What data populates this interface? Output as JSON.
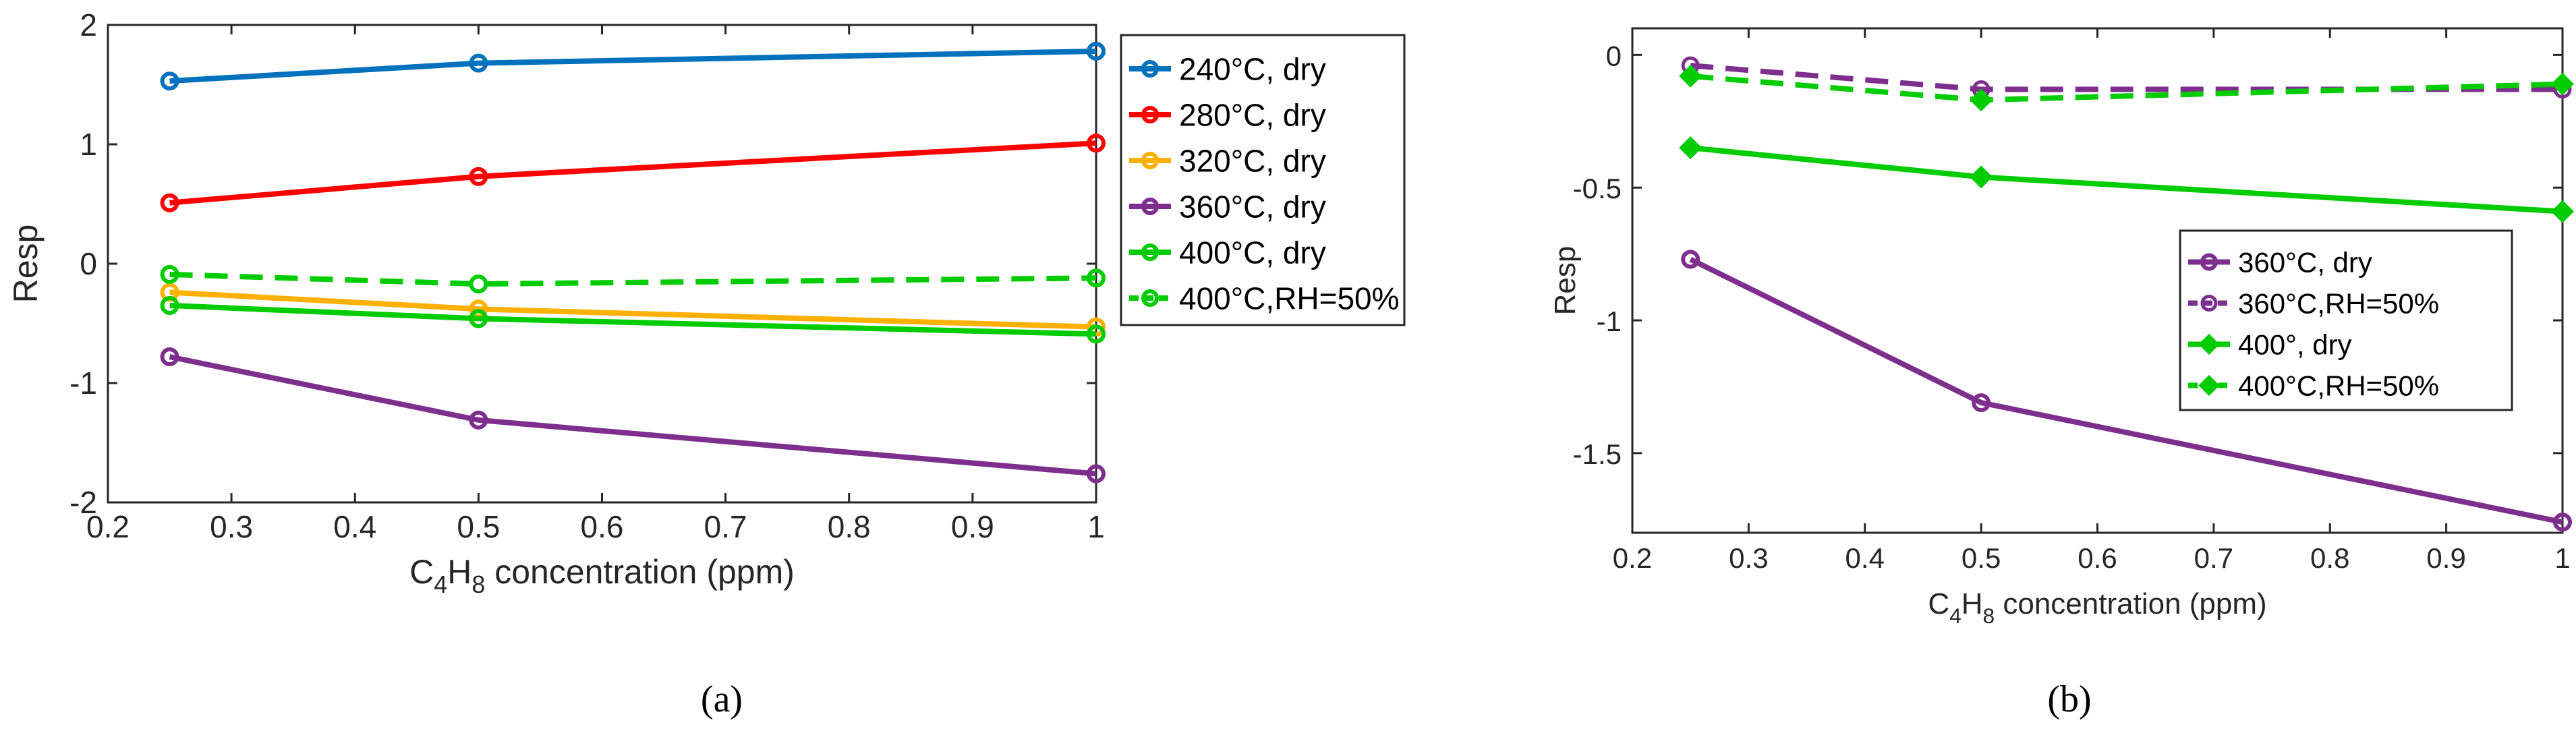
{
  "chart_data": [
    {
      "type": "line",
      "caption": "(a)",
      "xlabel": {
        "prefix": "C",
        "sub1": "4",
        "mid": "H",
        "sub2": "8",
        "suffix": " concentration (ppm)"
      },
      "ylabel": "Resp",
      "xlim": [
        0.2,
        1
      ],
      "ylim": [
        -2,
        2
      ],
      "xticks": [
        0.2,
        0.3,
        0.4,
        0.5,
        0.6,
        0.7,
        0.8,
        0.9,
        1
      ],
      "xtick_labels": [
        "0.2",
        "0.3",
        "0.4",
        "0.5",
        "0.6",
        "0.7",
        "0.8",
        "0.9",
        "1"
      ],
      "yticks": [
        -2,
        -1,
        0,
        1,
        2
      ],
      "ytick_labels": [
        "-2",
        "-1",
        "0",
        "1",
        "2"
      ],
      "x": [
        0.25,
        0.5,
        1
      ],
      "series": [
        {
          "name": "240°C, dry",
          "color": "#0072BD",
          "dash": false,
          "marker": "circle",
          "values": [
            1.53,
            1.68,
            1.78
          ]
        },
        {
          "name": "280°C, dry",
          "color": "#FF0000",
          "dash": false,
          "marker": "circle",
          "values": [
            0.51,
            0.73,
            1.01
          ]
        },
        {
          "name": "320°C, dry",
          "color": "#FFB000",
          "dash": false,
          "marker": "circle",
          "values": [
            -0.24,
            -0.38,
            -0.53
          ]
        },
        {
          "name": "360°C, dry",
          "color": "#7E2F8E",
          "dash": false,
          "marker": "circle",
          "values": [
            -0.78,
            -1.31,
            -1.76
          ]
        },
        {
          "name": "400°C, dry",
          "color": "#00CC00",
          "dash": false,
          "marker": "circle",
          "values": [
            -0.35,
            -0.46,
            -0.59
          ]
        },
        {
          "name": "400°C,RH=50%",
          "color": "#00CC00",
          "dash": true,
          "marker": "circle",
          "values": [
            -0.09,
            -0.17,
            -0.12
          ]
        }
      ],
      "legend_position": "outside-right"
    },
    {
      "type": "line",
      "caption": "(b)",
      "xlabel": {
        "prefix": "C",
        "sub1": "4",
        "mid": "H",
        "sub2": "8",
        "suffix": " concentration (ppm)"
      },
      "ylabel": "Resp",
      "xlim": [
        0.2,
        1
      ],
      "ylim": [
        -1.8,
        0.1
      ],
      "xticks": [
        0.2,
        0.3,
        0.4,
        0.5,
        0.6,
        0.7,
        0.8,
        0.9,
        1
      ],
      "xtick_labels": [
        "0.2",
        "0.3",
        "0.4",
        "0.5",
        "0.6",
        "0.7",
        "0.8",
        "0.9",
        "1"
      ],
      "yticks": [
        -1.5,
        -1,
        -0.5,
        0
      ],
      "ytick_labels": [
        "-1.5",
        "-1",
        "-0.5",
        "0"
      ],
      "x": [
        0.25,
        0.5,
        1
      ],
      "series": [
        {
          "name": "360°C, dry",
          "color": "#7E2F8E",
          "dash": false,
          "marker": "circle",
          "values": [
            -0.77,
            -1.31,
            -1.76
          ]
        },
        {
          "name": "360°C,RH=50%",
          "color": "#7E2F8E",
          "dash": true,
          "marker": "circle-open",
          "values": [
            -0.04,
            -0.13,
            -0.13
          ]
        },
        {
          "name": "400°, dry",
          "color": "#00CC00",
          "dash": false,
          "marker": "diamond",
          "values": [
            -0.35,
            -0.46,
            -0.59
          ]
        },
        {
          "name": "400°C,RH=50%",
          "color": "#00CC00",
          "dash": true,
          "marker": "diamond",
          "values": [
            -0.08,
            -0.17,
            -0.11
          ]
        }
      ],
      "legend_position": "inside-right"
    }
  ]
}
